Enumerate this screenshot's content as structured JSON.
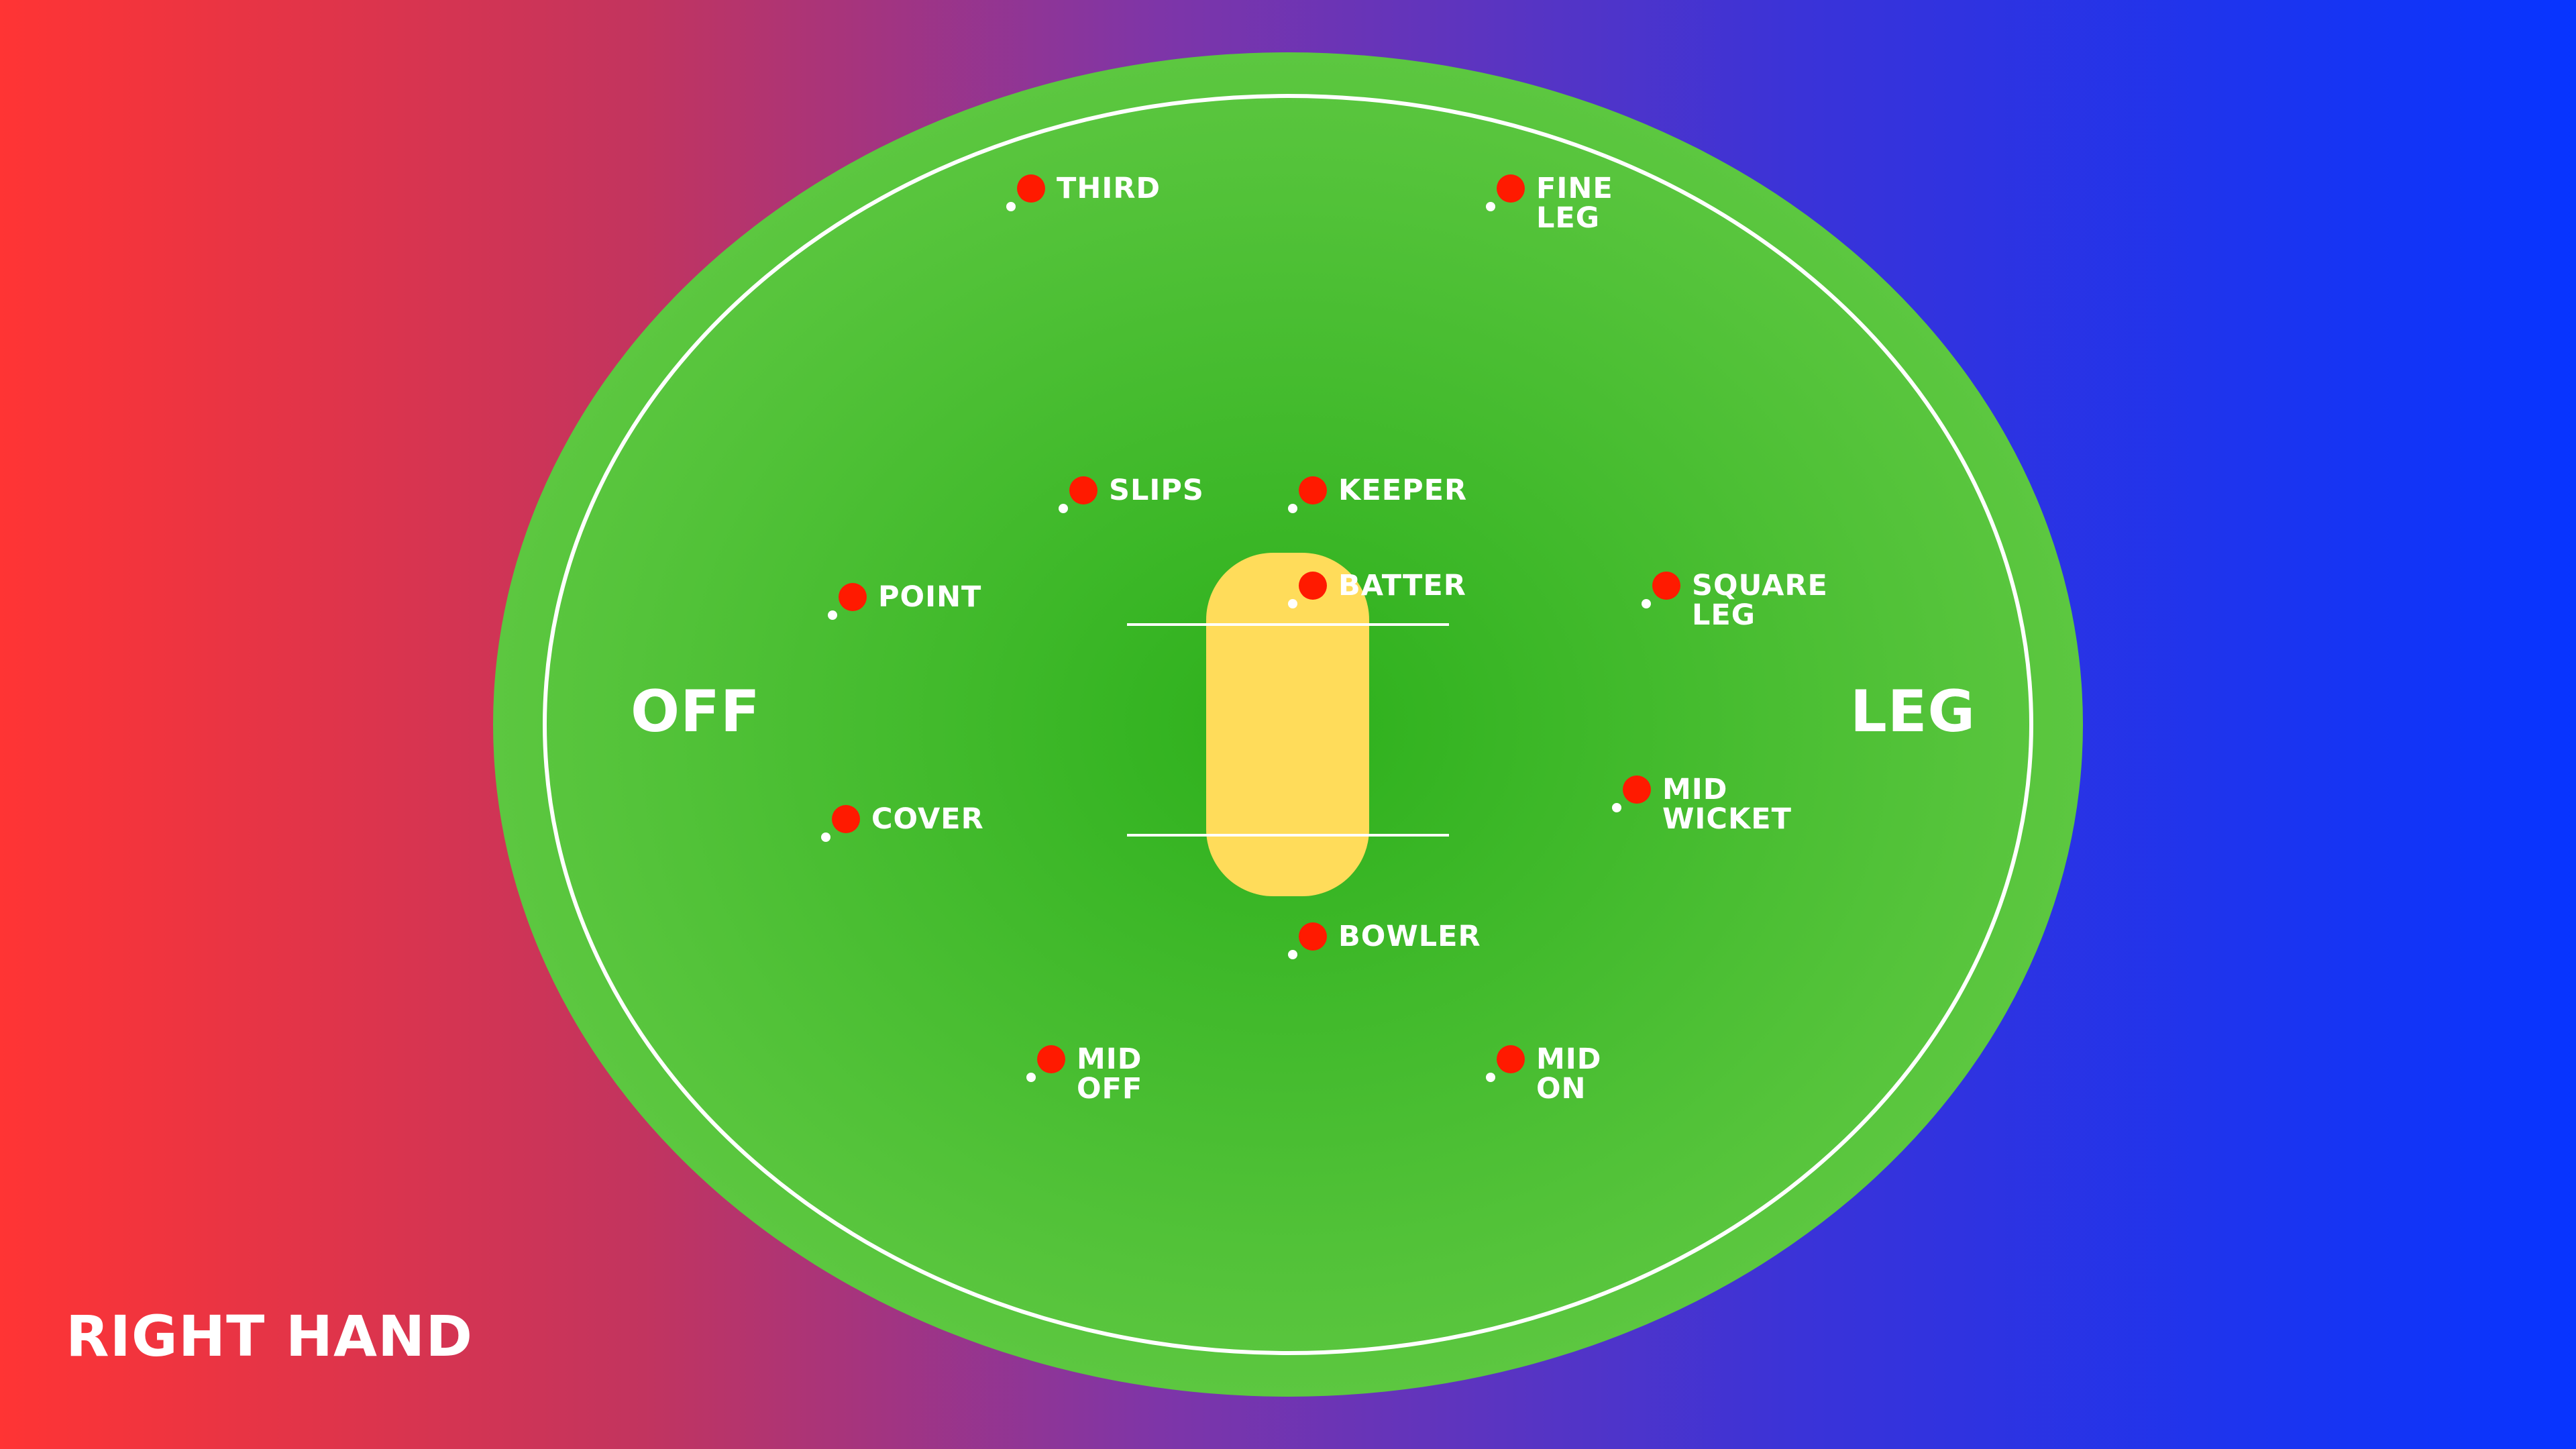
{
  "title": "RIGHT HAND",
  "sides": {
    "off": "OFF",
    "leg": "LEG"
  },
  "colors": {
    "background_left": "#ff3434",
    "background_right": "#0734ff",
    "field_outer": "#5cc740",
    "field_center": "#2db01c",
    "pitch": "#ffdc5a",
    "fielder": "#ff1a00",
    "lines": "#ffffff"
  },
  "positions": [
    {
      "id": "third",
      "lines": [
        "THIRD"
      ]
    },
    {
      "id": "fine-leg",
      "lines": [
        "FINE",
        "LEG"
      ]
    },
    {
      "id": "slips",
      "lines": [
        "SLIPS"
      ]
    },
    {
      "id": "keeper",
      "lines": [
        "KEEPER"
      ]
    },
    {
      "id": "point",
      "lines": [
        "POINT"
      ]
    },
    {
      "id": "batter",
      "lines": [
        "BATTER"
      ]
    },
    {
      "id": "square-leg",
      "lines": [
        "SQUARE",
        "LEG"
      ]
    },
    {
      "id": "cover",
      "lines": [
        "COVER"
      ]
    },
    {
      "id": "mid-wicket",
      "lines": [
        "MID",
        "WICKET"
      ]
    },
    {
      "id": "bowler",
      "lines": [
        "BOWLER"
      ]
    },
    {
      "id": "mid-off",
      "lines": [
        "MID",
        "OFF"
      ]
    },
    {
      "id": "mid-on",
      "lines": [
        "MID",
        "ON"
      ]
    }
  ]
}
